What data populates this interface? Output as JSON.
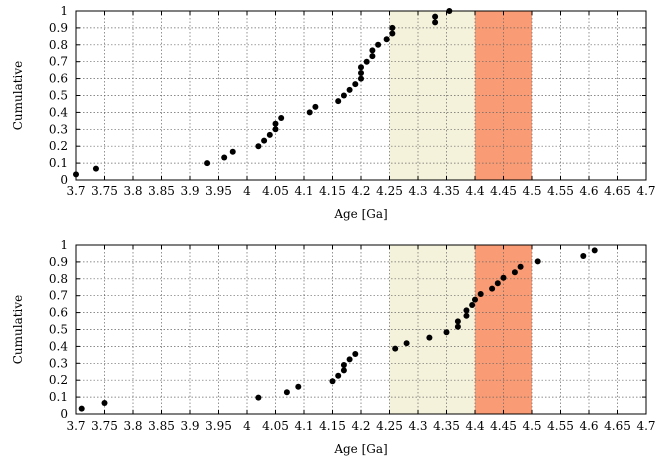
{
  "chart_data": [
    {
      "type": "scatter",
      "xlabel": "Age [Ga]",
      "ylabel": "Cumulative",
      "xlim": [
        3.7,
        4.7
      ],
      "ylim": [
        0,
        1
      ],
      "x_ticks": [
        "3.7",
        "3.75",
        "3.8",
        "3.85",
        "3.9",
        "3.95",
        "4",
        "4.05",
        "4.1",
        "4.15",
        "4.2",
        "4.25",
        "4.3",
        "4.35",
        "4.4",
        "4.45",
        "4.5",
        "4.55",
        "4.6",
        "4.65",
        "4.7"
      ],
      "y_ticks": [
        "0",
        "0.1",
        "0.2",
        "0.3",
        "0.4",
        "0.5",
        "0.6",
        "0.7",
        "0.8",
        "0.9",
        "1"
      ],
      "grid": true,
      "shaded_regions": [
        {
          "x0": 4.25,
          "x1": 4.4,
          "color": "#f5f2dc"
        },
        {
          "x0": 4.4,
          "x1": 4.5,
          "color": "#f99b74"
        }
      ],
      "series": [
        {
          "color": "#000000",
          "points": [
            [
              3.7,
              0.033
            ],
            [
              3.735,
              0.067
            ],
            [
              3.93,
              0.1
            ],
            [
              3.96,
              0.133
            ],
            [
              3.975,
              0.167
            ],
            [
              4.02,
              0.2
            ],
            [
              4.03,
              0.233
            ],
            [
              4.04,
              0.267
            ],
            [
              4.05,
              0.3
            ],
            [
              4.05,
              0.333
            ],
            [
              4.06,
              0.367
            ],
            [
              4.11,
              0.4
            ],
            [
              4.12,
              0.433
            ],
            [
              4.16,
              0.467
            ],
            [
              4.17,
              0.5
            ],
            [
              4.18,
              0.533
            ],
            [
              4.19,
              0.567
            ],
            [
              4.2,
              0.6
            ],
            [
              4.2,
              0.633
            ],
            [
              4.2,
              0.667
            ],
            [
              4.21,
              0.7
            ],
            [
              4.22,
              0.733
            ],
            [
              4.22,
              0.767
            ],
            [
              4.23,
              0.8
            ],
            [
              4.245,
              0.833
            ],
            [
              4.255,
              0.867
            ],
            [
              4.255,
              0.9
            ],
            [
              4.33,
              0.933
            ],
            [
              4.33,
              0.967
            ],
            [
              4.355,
              1.0
            ]
          ]
        }
      ]
    },
    {
      "type": "scatter",
      "xlabel": "Age [Ga]",
      "ylabel": "Cumulative",
      "xlim": [
        3.7,
        4.7
      ],
      "ylim": [
        0,
        1
      ],
      "x_ticks": [
        "3.7",
        "3.75",
        "3.8",
        "3.85",
        "3.9",
        "3.95",
        "4",
        "4.05",
        "4.1",
        "4.15",
        "4.2",
        "4.25",
        "4.3",
        "4.35",
        "4.4",
        "4.45",
        "4.5",
        "4.55",
        "4.6",
        "4.65",
        "4.7"
      ],
      "y_ticks": [
        "0",
        "0.1",
        "0.2",
        "0.3",
        "0.4",
        "0.5",
        "0.6",
        "0.7",
        "0.8",
        "0.9",
        "1"
      ],
      "grid": true,
      "shaded_regions": [
        {
          "x0": 4.25,
          "x1": 4.4,
          "color": "#f5f2dc"
        },
        {
          "x0": 4.4,
          "x1": 4.5,
          "color": "#f99b74"
        }
      ],
      "series": [
        {
          "color": "#000000",
          "points": [
            [
              3.71,
              0.032
            ],
            [
              3.75,
              0.065
            ],
            [
              4.02,
              0.097
            ],
            [
              4.07,
              0.129
            ],
            [
              4.09,
              0.161
            ],
            [
              4.15,
              0.194
            ],
            [
              4.16,
              0.226
            ],
            [
              4.17,
              0.258
            ],
            [
              4.17,
              0.29
            ],
            [
              4.18,
              0.323
            ],
            [
              4.19,
              0.355
            ],
            [
              4.26,
              0.387
            ],
            [
              4.28,
              0.419
            ],
            [
              4.32,
              0.452
            ],
            [
              4.35,
              0.484
            ],
            [
              4.37,
              0.516
            ],
            [
              4.37,
              0.548
            ],
            [
              4.385,
              0.581
            ],
            [
              4.385,
              0.613
            ],
            [
              4.395,
              0.645
            ],
            [
              4.4,
              0.677
            ],
            [
              4.41,
              0.71
            ],
            [
              4.43,
              0.742
            ],
            [
              4.44,
              0.774
            ],
            [
              4.45,
              0.806
            ],
            [
              4.47,
              0.839
            ],
            [
              4.48,
              0.871
            ],
            [
              4.51,
              0.903
            ],
            [
              4.59,
              0.935
            ],
            [
              4.61,
              0.968
            ]
          ]
        }
      ]
    }
  ]
}
